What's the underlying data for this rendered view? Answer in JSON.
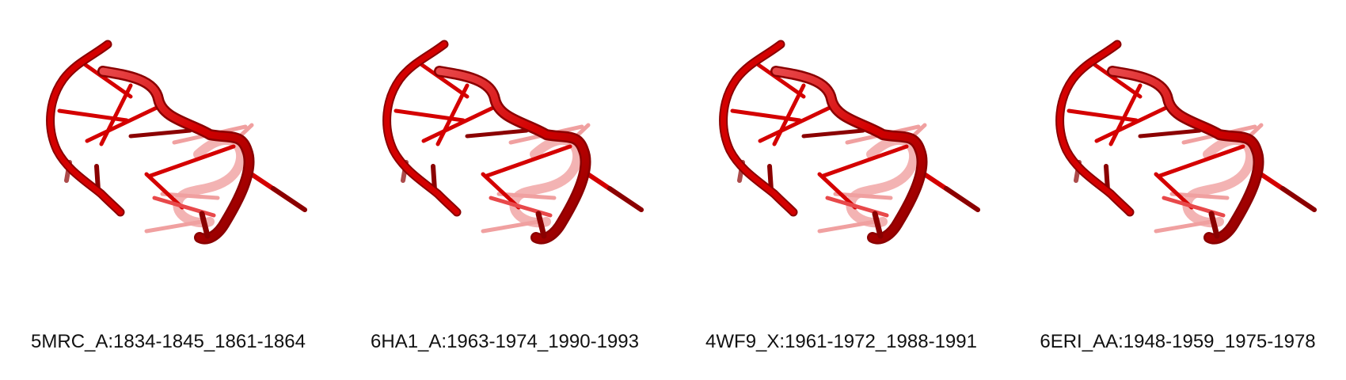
{
  "panels": [
    {
      "label": "5MRC_A:1834-1845_1861-1864"
    },
    {
      "label": "6HA1_A:1963-1974_1990-1993"
    },
    {
      "label": "4WF9_X:1961-1972_1988-1991"
    },
    {
      "label": "6ERI_AA:1948-1959_1975-1978"
    }
  ],
  "colors": {
    "strand": "#d40000",
    "strand_dark": "#8a0000",
    "strand_light": "#e8484a",
    "faded": "#f0a0a0",
    "background": "#ffffff"
  },
  "icons": [
    "rna-cartoon-structure"
  ]
}
